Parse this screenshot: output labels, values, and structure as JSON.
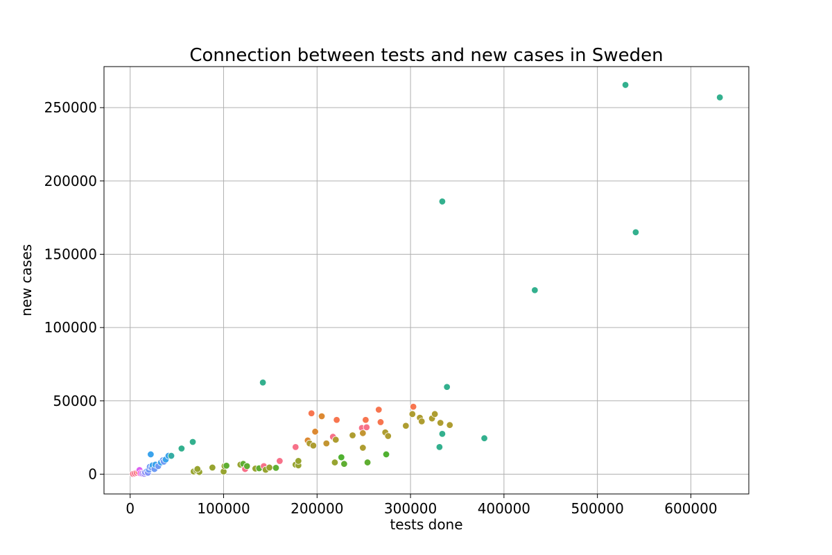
{
  "chart_data": {
    "type": "scatter",
    "title": "Connection between tests and new cases in Sweden",
    "xlabel": "tests done",
    "ylabel": "new cases",
    "xlim": [
      -28000,
      662000
    ],
    "ylim": [
      -13500,
      278000
    ],
    "xticks": [
      0,
      100000,
      200000,
      300000,
      400000,
      500000,
      600000
    ],
    "yticks": [
      0,
      50000,
      100000,
      150000,
      200000,
      250000
    ],
    "xtick_labels": [
      "0",
      "100000",
      "200000",
      "300000",
      "400000",
      "500000",
      "600000"
    ],
    "ytick_labels": [
      "0",
      "50000",
      "100000",
      "150000",
      "200000",
      "250000"
    ],
    "grid": true,
    "legend": "none",
    "points": [
      {
        "x": 3000,
        "y": 200,
        "color": "#f77189"
      },
      {
        "x": 5000,
        "y": 500,
        "color": "#f77189"
      },
      {
        "x": 7000,
        "y": 900,
        "color": "#f77189"
      },
      {
        "x": 9000,
        "y": 1400,
        "color": "#f7754f"
      },
      {
        "x": 10000,
        "y": 2800,
        "color": "#dc61f2"
      },
      {
        "x": 11000,
        "y": 600,
        "color": "#f561dd"
      },
      {
        "x": 13000,
        "y": 400,
        "color": "#b48cf2"
      },
      {
        "x": 15000,
        "y": 300,
        "color": "#a48cf4"
      },
      {
        "x": 16000,
        "y": 1200,
        "color": "#9294f5"
      },
      {
        "x": 18000,
        "y": 2000,
        "color": "#6e9bf4"
      },
      {
        "x": 19000,
        "y": 1000,
        "color": "#8091f6"
      },
      {
        "x": 20000,
        "y": 3000,
        "color": "#6e9bf4"
      },
      {
        "x": 21000,
        "y": 5000,
        "color": "#6e9bf4"
      },
      {
        "x": 22000,
        "y": 13500,
        "color": "#3ba3ec"
      },
      {
        "x": 23000,
        "y": 4500,
        "color": "#6e9bf4"
      },
      {
        "x": 24000,
        "y": 6000,
        "color": "#3ba3ec"
      },
      {
        "x": 26000,
        "y": 3500,
        "color": "#6e9bf4"
      },
      {
        "x": 27000,
        "y": 6500,
        "color": "#3ba3ec"
      },
      {
        "x": 30000,
        "y": 5500,
        "color": "#6e9bf4"
      },
      {
        "x": 33000,
        "y": 8000,
        "color": "#3ba3ec"
      },
      {
        "x": 35000,
        "y": 9500,
        "color": "#6e9bf4"
      },
      {
        "x": 36000,
        "y": 8500,
        "color": "#6e9bf4"
      },
      {
        "x": 38000,
        "y": 10000,
        "color": "#3ba3ec"
      },
      {
        "x": 41000,
        "y": 12500,
        "color": "#3ba3ec"
      },
      {
        "x": 44000,
        "y": 12500,
        "color": "#36ada4"
      },
      {
        "x": 55000,
        "y": 17500,
        "color": "#33b08e"
      },
      {
        "x": 67000,
        "y": 22000,
        "color": "#33b08e"
      },
      {
        "x": 68000,
        "y": 1800,
        "color": "#97a431"
      },
      {
        "x": 71000,
        "y": 2500,
        "color": "#97a431"
      },
      {
        "x": 74000,
        "y": 1500,
        "color": "#97a431"
      },
      {
        "x": 72000,
        "y": 3500,
        "color": "#97a431"
      },
      {
        "x": 88000,
        "y": 4500,
        "color": "#97a431"
      },
      {
        "x": 100000,
        "y": 1800,
        "color": "#97a431"
      },
      {
        "x": 101000,
        "y": 5500,
        "color": "#97a431"
      },
      {
        "x": 103000,
        "y": 5800,
        "color": "#5fae32"
      },
      {
        "x": 118000,
        "y": 6500,
        "color": "#97a431"
      },
      {
        "x": 121000,
        "y": 7000,
        "color": "#5fae32"
      },
      {
        "x": 123000,
        "y": 3500,
        "color": "#f77189"
      },
      {
        "x": 125000,
        "y": 5500,
        "color": "#5fae32"
      },
      {
        "x": 134000,
        "y": 3800,
        "color": "#97a431"
      },
      {
        "x": 138000,
        "y": 4000,
        "color": "#5fae32"
      },
      {
        "x": 142000,
        "y": 62500,
        "color": "#33b08e"
      },
      {
        "x": 143000,
        "y": 5500,
        "color": "#f77189"
      },
      {
        "x": 145000,
        "y": 3000,
        "color": "#97a431"
      },
      {
        "x": 149000,
        "y": 4500,
        "color": "#97a431"
      },
      {
        "x": 156000,
        "y": 4300,
        "color": "#5fae32"
      },
      {
        "x": 160000,
        "y": 9000,
        "color": "#f77189"
      },
      {
        "x": 177000,
        "y": 18500,
        "color": "#f77189"
      },
      {
        "x": 177000,
        "y": 6500,
        "color": "#97a431"
      },
      {
        "x": 180000,
        "y": 6000,
        "color": "#97a431"
      },
      {
        "x": 180000,
        "y": 9000,
        "color": "#97a431"
      },
      {
        "x": 190000,
        "y": 23000,
        "color": "#dc8932"
      },
      {
        "x": 192000,
        "y": 21000,
        "color": "#ae9d31"
      },
      {
        "x": 194000,
        "y": 41500,
        "color": "#f7754f"
      },
      {
        "x": 196000,
        "y": 19500,
        "color": "#ae9d31"
      },
      {
        "x": 198000,
        "y": 29000,
        "color": "#dc8932"
      },
      {
        "x": 205000,
        "y": 39500,
        "color": "#dc8932"
      },
      {
        "x": 210000,
        "y": 21000,
        "color": "#c39532"
      },
      {
        "x": 217000,
        "y": 25500,
        "color": "#f77189"
      },
      {
        "x": 219000,
        "y": 8000,
        "color": "#97a431"
      },
      {
        "x": 220000,
        "y": 23500,
        "color": "#ae9d31"
      },
      {
        "x": 221000,
        "y": 37000,
        "color": "#f7754f"
      },
      {
        "x": 226000,
        "y": 11500,
        "color": "#50b131"
      },
      {
        "x": 229000,
        "y": 7000,
        "color": "#5fae32"
      },
      {
        "x": 238000,
        "y": 26500,
        "color": "#ae9d31"
      },
      {
        "x": 248000,
        "y": 31500,
        "color": "#f77189"
      },
      {
        "x": 249000,
        "y": 18000,
        "color": "#ae9d31"
      },
      {
        "x": 249000,
        "y": 28000,
        "color": "#c39532"
      },
      {
        "x": 252000,
        "y": 37000,
        "color": "#f7754f"
      },
      {
        "x": 253000,
        "y": 32000,
        "color": "#f77189"
      },
      {
        "x": 254000,
        "y": 8000,
        "color": "#5fae32"
      },
      {
        "x": 266000,
        "y": 44000,
        "color": "#f7754f"
      },
      {
        "x": 268000,
        "y": 35500,
        "color": "#f7754f"
      },
      {
        "x": 273000,
        "y": 28500,
        "color": "#ae9d31"
      },
      {
        "x": 274000,
        "y": 13500,
        "color": "#50b131"
      },
      {
        "x": 276000,
        "y": 26000,
        "color": "#ae9d31"
      },
      {
        "x": 295000,
        "y": 33000,
        "color": "#ae9d31"
      },
      {
        "x": 302000,
        "y": 41000,
        "color": "#ae9d31"
      },
      {
        "x": 303000,
        "y": 46000,
        "color": "#f7754f"
      },
      {
        "x": 310000,
        "y": 38500,
        "color": "#ae9d31"
      },
      {
        "x": 312000,
        "y": 36000,
        "color": "#ae9d31"
      },
      {
        "x": 323000,
        "y": 38000,
        "color": "#ae9d31"
      },
      {
        "x": 326000,
        "y": 41000,
        "color": "#ae9d31"
      },
      {
        "x": 331000,
        "y": 18500,
        "color": "#33b08e"
      },
      {
        "x": 332000,
        "y": 35000,
        "color": "#ae9d31"
      },
      {
        "x": 334000,
        "y": 27500,
        "color": "#33b08e"
      },
      {
        "x": 334000,
        "y": 186000,
        "color": "#33b08e"
      },
      {
        "x": 339000,
        "y": 59500,
        "color": "#33b08e"
      },
      {
        "x": 342000,
        "y": 33500,
        "color": "#ae9d31"
      },
      {
        "x": 379000,
        "y": 24500,
        "color": "#33b08e"
      },
      {
        "x": 433000,
        "y": 125500,
        "color": "#33b08e"
      },
      {
        "x": 530000,
        "y": 265500,
        "color": "#33b08e"
      },
      {
        "x": 541000,
        "y": 165000,
        "color": "#33b08e"
      },
      {
        "x": 631000,
        "y": 257000,
        "color": "#33b08e"
      }
    ]
  }
}
